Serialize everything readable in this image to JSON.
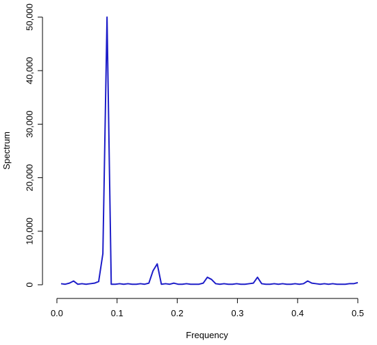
{
  "chart_data": {
    "type": "line",
    "x_label": "Frequency",
    "y_label": "Spectrum",
    "x": [
      0.0069,
      0.0139,
      0.0208,
      0.0278,
      0.0347,
      0.0417,
      0.0486,
      0.0556,
      0.0625,
      0.0694,
      0.0764,
      0.0833,
      0.0903,
      0.0972,
      0.1042,
      0.1111,
      0.1181,
      0.125,
      0.1319,
      0.1389,
      0.1458,
      0.1528,
      0.1597,
      0.1667,
      0.1736,
      0.1806,
      0.1875,
      0.1944,
      0.2014,
      0.2083,
      0.2153,
      0.2222,
      0.2292,
      0.2361,
      0.2431,
      0.25,
      0.2569,
      0.2639,
      0.2708,
      0.2778,
      0.2847,
      0.2917,
      0.2986,
      0.3056,
      0.3125,
      0.3194,
      0.3264,
      0.3333,
      0.3403,
      0.3472,
      0.3542,
      0.3611,
      0.3681,
      0.375,
      0.3819,
      0.3889,
      0.3958,
      0.4028,
      0.4097,
      0.4167,
      0.4236,
      0.4306,
      0.4375,
      0.4444,
      0.4514,
      0.4583,
      0.4653,
      0.4722,
      0.4792,
      0.4861,
      0.4931,
      0.5
    ],
    "series": [
      {
        "name": "Spectrum",
        "color": "#1c1cc8",
        "values": [
          200,
          100,
          300,
          700,
          100,
          200,
          100,
          200,
          300,
          600,
          5800,
          50000,
          100,
          100,
          200,
          100,
          200,
          100,
          100,
          200,
          100,
          300,
          2600,
          3900,
          100,
          200,
          100,
          300,
          100,
          100,
          200,
          100,
          100,
          100,
          300,
          1400,
          1000,
          200,
          100,
          200,
          100,
          100,
          200,
          100,
          100,
          200,
          300,
          1400,
          200,
          100,
          100,
          200,
          100,
          200,
          100,
          100,
          200,
          100,
          200,
          700,
          300,
          200,
          100,
          200,
          100,
          200,
          100,
          100,
          100,
          200,
          200,
          400
        ]
      }
    ],
    "xlim": [
      0,
      0.5
    ],
    "xticks": [
      {
        "value": 0,
        "label": "0.0"
      },
      0.1,
      0.2,
      0.3,
      0.4,
      0.5
    ],
    "ylim": [
      0,
      50000
    ],
    "yticks": [
      0,
      {
        "value": 10000,
        "label": "10,000"
      },
      {
        "value": 20000,
        "label": "20,000"
      },
      {
        "value": 30000,
        "label": "30,000"
      },
      {
        "value": 40000,
        "label": "40,000"
      },
      {
        "value": 50000,
        "label": "50,000"
      }
    ]
  }
}
